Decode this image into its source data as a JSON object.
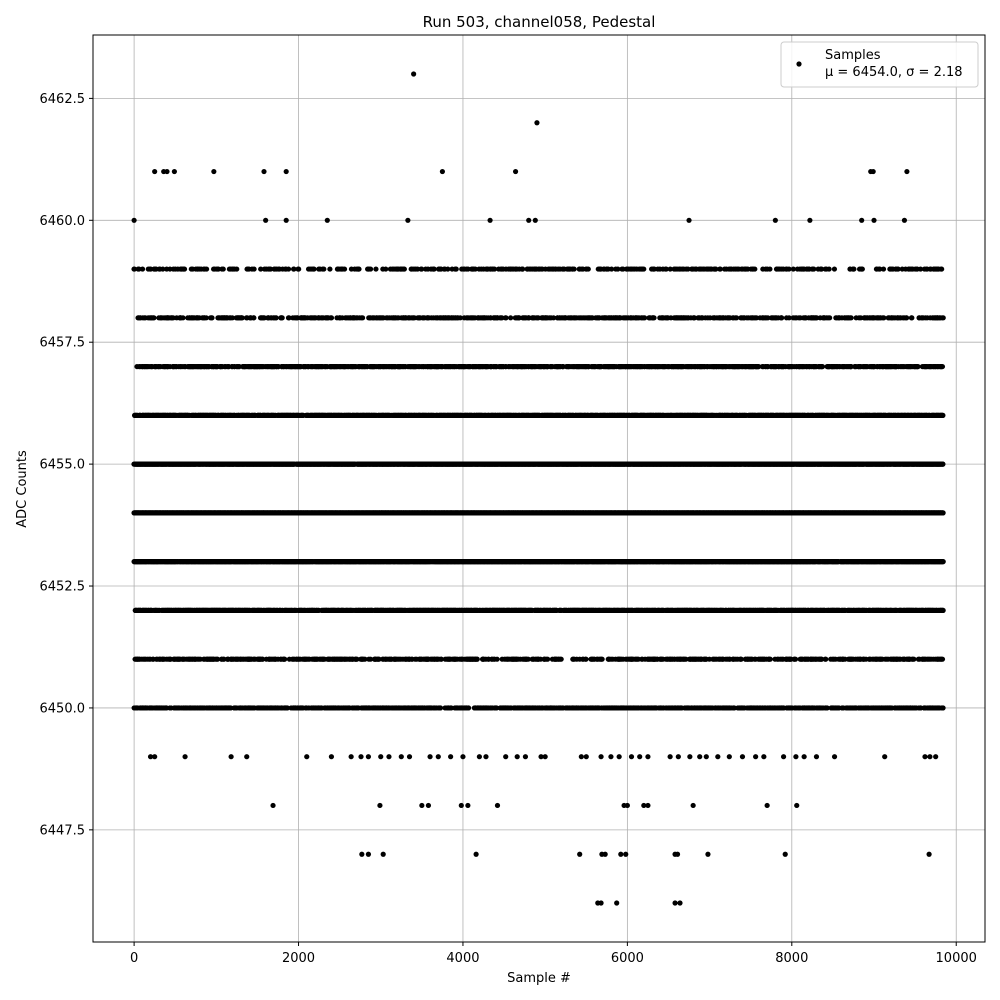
{
  "chart_data": {
    "type": "scatter",
    "title": "Run 503, channel058, Pedestal",
    "xlabel": "Sample #",
    "ylabel": "ADC Counts",
    "xlim": [
      -500,
      10350
    ],
    "ylim": [
      6445.2,
      6463.8
    ],
    "xticks": [
      0,
      2000,
      4000,
      6000,
      8000,
      10000
    ],
    "xtick_labels": [
      "0",
      "2000",
      "4000",
      "6000",
      "8000",
      "10000"
    ],
    "yticks": [
      6447.5,
      6450.0,
      6452.5,
      6455.0,
      6457.5,
      6460.0,
      6462.5
    ],
    "ytick_labels": [
      "6447.5",
      "6450.0",
      "6452.5",
      "6455.0",
      "6457.5",
      "6460.0",
      "6462.5"
    ],
    "grid": true,
    "legend_position": "top-right",
    "marker_color": "#000000",
    "series": [
      {
        "name": "Samples",
        "label_line2": "μ = 6454.0, σ = 2.18",
        "x_range": [
          0,
          9840
        ],
        "dense_levels": [
          {
            "y": 6450,
            "density": 0.55
          },
          {
            "y": 6451,
            "density": 0.4
          },
          {
            "y": 6452,
            "density": 0.75
          },
          {
            "y": 6453,
            "density": 0.95
          },
          {
            "y": 6454,
            "density": 1.0
          },
          {
            "y": 6455,
            "density": 0.95
          },
          {
            "y": 6456,
            "density": 0.8
          },
          {
            "y": 6457,
            "density": 0.55
          },
          {
            "y": 6458,
            "density": 0.35
          },
          {
            "y": 6459,
            "density": 0.22
          }
        ],
        "points": [
          [
            0,
            6460
          ],
          [
            1600,
            6460
          ],
          [
            1850,
            6460
          ],
          [
            2350,
            6460
          ],
          [
            3330,
            6460
          ],
          [
            4330,
            6460
          ],
          [
            4800,
            6460
          ],
          [
            4880,
            6460
          ],
          [
            6750,
            6460
          ],
          [
            7800,
            6460
          ],
          [
            8220,
            6460
          ],
          [
            8850,
            6460
          ],
          [
            9000,
            6460
          ],
          [
            9370,
            6460
          ],
          [
            250,
            6461
          ],
          [
            360,
            6461
          ],
          [
            400,
            6461
          ],
          [
            490,
            6461
          ],
          [
            970,
            6461
          ],
          [
            1580,
            6461
          ],
          [
            1850,
            6461
          ],
          [
            3750,
            6461
          ],
          [
            4640,
            6461
          ],
          [
            8960,
            6461
          ],
          [
            8990,
            6461
          ],
          [
            9400,
            6461
          ],
          [
            3400,
            6463
          ],
          [
            4900,
            6462
          ],
          [
            200,
            6449
          ],
          [
            250,
            6449
          ],
          [
            620,
            6449
          ],
          [
            1180,
            6449
          ],
          [
            1370,
            6449
          ],
          [
            2100,
            6449
          ],
          [
            2400,
            6449
          ],
          [
            2640,
            6449
          ],
          [
            2760,
            6449
          ],
          [
            2850,
            6449
          ],
          [
            3000,
            6449
          ],
          [
            3100,
            6449
          ],
          [
            3250,
            6449
          ],
          [
            3350,
            6449
          ],
          [
            3600,
            6449
          ],
          [
            3700,
            6449
          ],
          [
            3850,
            6449
          ],
          [
            4000,
            6449
          ],
          [
            4200,
            6449
          ],
          [
            4280,
            6449
          ],
          [
            4520,
            6449
          ],
          [
            4660,
            6449
          ],
          [
            4760,
            6449
          ],
          [
            4950,
            6449
          ],
          [
            5000,
            6449
          ],
          [
            5440,
            6449
          ],
          [
            5500,
            6449
          ],
          [
            5680,
            6449
          ],
          [
            5800,
            6449
          ],
          [
            5900,
            6449
          ],
          [
            6050,
            6449
          ],
          [
            6150,
            6449
          ],
          [
            6250,
            6449
          ],
          [
            6520,
            6449
          ],
          [
            6620,
            6449
          ],
          [
            6760,
            6449
          ],
          [
            6880,
            6449
          ],
          [
            6960,
            6449
          ],
          [
            7100,
            6449
          ],
          [
            7240,
            6449
          ],
          [
            7400,
            6449
          ],
          [
            7560,
            6449
          ],
          [
            7660,
            6449
          ],
          [
            7900,
            6449
          ],
          [
            8050,
            6449
          ],
          [
            8150,
            6449
          ],
          [
            8300,
            6449
          ],
          [
            8520,
            6449
          ],
          [
            9130,
            6449
          ],
          [
            9620,
            6449
          ],
          [
            9680,
            6449
          ],
          [
            9750,
            6449
          ],
          [
            1690,
            6448
          ],
          [
            2990,
            6448
          ],
          [
            3500,
            6448
          ],
          [
            3580,
            6448
          ],
          [
            3980,
            6448
          ],
          [
            4060,
            6448
          ],
          [
            4420,
            6448
          ],
          [
            5960,
            6448
          ],
          [
            6000,
            6448
          ],
          [
            6200,
            6448
          ],
          [
            6250,
            6448
          ],
          [
            6800,
            6448
          ],
          [
            7700,
            6448
          ],
          [
            8060,
            6448
          ],
          [
            2770,
            6447
          ],
          [
            2850,
            6447
          ],
          [
            3030,
            6447
          ],
          [
            4160,
            6447
          ],
          [
            5420,
            6447
          ],
          [
            5690,
            6447
          ],
          [
            5730,
            6447
          ],
          [
            5920,
            6447
          ],
          [
            5980,
            6447
          ],
          [
            6580,
            6447
          ],
          [
            6610,
            6447
          ],
          [
            6980,
            6447
          ],
          [
            7920,
            6447
          ],
          [
            9670,
            6447
          ],
          [
            5640,
            6446
          ],
          [
            5680,
            6446
          ],
          [
            5870,
            6446
          ],
          [
            6580,
            6446
          ],
          [
            6640,
            6446
          ]
        ]
      }
    ]
  }
}
